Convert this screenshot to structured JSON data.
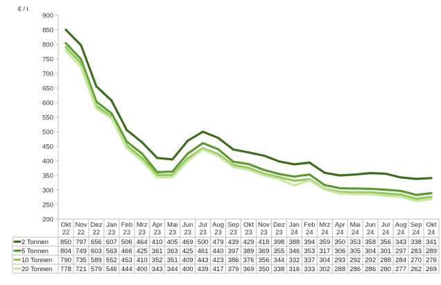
{
  "chart_data": {
    "type": "line",
    "unit_label": "€ / t",
    "ylim": [
      200,
      900
    ],
    "ytick_step": 50,
    "grid": false,
    "legend": "data-table-below",
    "categories": [
      [
        "Okt",
        "22"
      ],
      [
        "Nov",
        "22"
      ],
      [
        "Dez",
        "22"
      ],
      [
        "Jan",
        "23"
      ],
      [
        "Feb",
        "23"
      ],
      [
        "Mrz",
        "23"
      ],
      [
        "Apr",
        "23"
      ],
      [
        "Mai",
        "23"
      ],
      [
        "Jun",
        "23"
      ],
      [
        "Jul",
        "23"
      ],
      [
        "Aug",
        "23"
      ],
      [
        "Sep",
        "23"
      ],
      [
        "Okt",
        "23"
      ],
      [
        "Nov",
        "23"
      ],
      [
        "Dez",
        "23"
      ],
      [
        "Jan",
        "24"
      ],
      [
        "Feb",
        "24"
      ],
      [
        "Mrz",
        "24"
      ],
      [
        "Apr",
        "24"
      ],
      [
        "Mai",
        "24"
      ],
      [
        "Jun",
        "24"
      ],
      [
        "Jul",
        "24"
      ],
      [
        "Aug",
        "24"
      ],
      [
        "Sep",
        "24"
      ],
      [
        "Okt",
        "24"
      ]
    ],
    "series": [
      {
        "name": "2 Tonnen",
        "color": "#3d6e1f",
        "values": [
          850,
          797,
          656,
          607,
          506,
          464,
          410,
          405,
          469,
          500,
          479,
          439,
          429,
          418,
          398,
          388,
          394,
          359,
          350,
          353,
          358,
          356,
          343,
          338,
          341
        ]
      },
      {
        "name": "5 Tonnen",
        "color": "#5a9a2e",
        "values": [
          804,
          749,
          603,
          563,
          466,
          425,
          361,
          363,
          425,
          461,
          440,
          397,
          389,
          369,
          355,
          346,
          353,
          317,
          306,
          305,
          304,
          301,
          297,
          283,
          289
        ]
      },
      {
        "name": "10 Tonnen",
        "color": "#92c957",
        "values": [
          790,
          735,
          589,
          552,
          453,
          410,
          352,
          351,
          409,
          443,
          423,
          386,
          376,
          356,
          344,
          332,
          337,
          304,
          293,
          292,
          292,
          288,
          284,
          270,
          276
        ]
      },
      {
        "name": "20 Tonnen",
        "color": "#c9e6a4",
        "values": [
          778,
          721,
          579,
          546,
          444,
          400,
          343,
          344,
          400,
          439,
          417,
          379,
          369,
          350,
          338,
          316,
          333,
          302,
          288,
          286,
          286,
          280,
          277,
          262,
          269
        ]
      }
    ]
  }
}
